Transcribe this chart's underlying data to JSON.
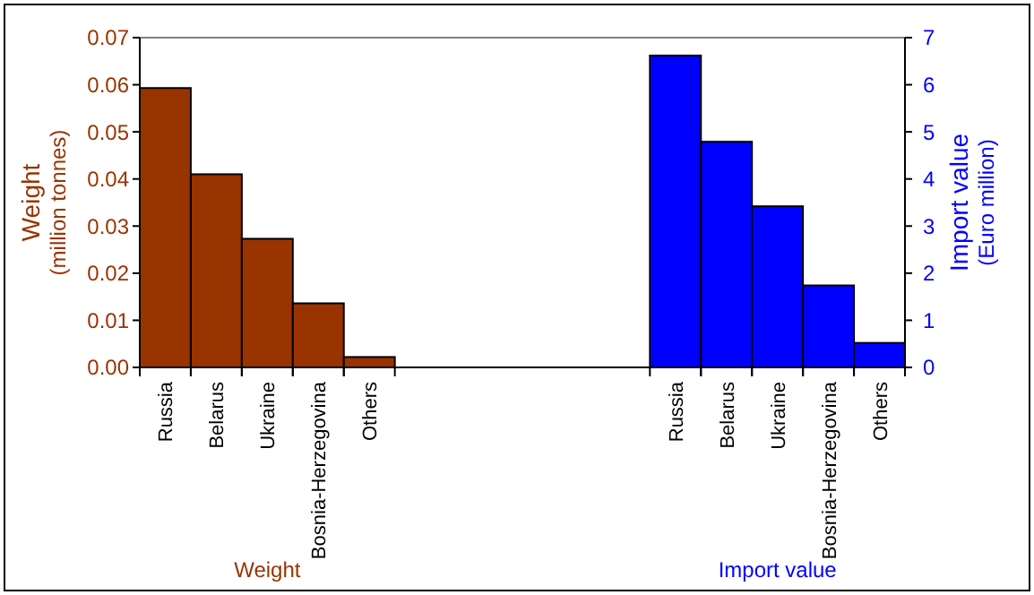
{
  "chart_data": {
    "type": "bar",
    "categories": [
      "Russia",
      "Belarus",
      "Ukraine",
      "Bosnia-Herzegovina",
      "Others",
      null,
      null,
      null,
      null,
      null,
      "Russia",
      "Belarus",
      "Ukraine",
      "Bosnia-Herzegovina",
      "Others"
    ],
    "series": [
      {
        "name": "Weight",
        "color": "#993300",
        "values": [
          0.0593,
          0.041,
          0.0273,
          0.0136,
          0.0022,
          null,
          null,
          null,
          null,
          null,
          null,
          null,
          null,
          null,
          null
        ]
      },
      {
        "name": "Import value",
        "color": "#0000ff",
        "axis": "y2",
        "values": [
          null,
          null,
          null,
          null,
          null,
          null,
          null,
          null,
          null,
          null,
          6.62,
          4.79,
          3.42,
          1.74,
          0.52
        ]
      }
    ],
    "ylabel": "Weight\n(million tonnes)",
    "y2label": "Import value\n(Euro million)",
    "ylim": [
      0,
      0.07
    ],
    "yticks": [
      {
        "value": 0,
        "label": "0.00"
      },
      0.01,
      0.02,
      0.03,
      0.04,
      0.05,
      0.06,
      0.07
    ],
    "y2lim": [
      0,
      7
    ],
    "y2ticks": [
      0,
      1,
      2,
      3,
      4,
      5,
      6,
      7
    ],
    "grid": false
  }
}
